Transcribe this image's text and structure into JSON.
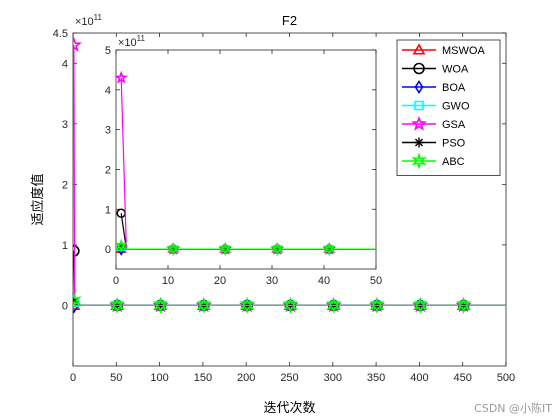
{
  "chart_data": [
    {
      "type": "line",
      "title": "F2",
      "xlabel": "迭代次数",
      "ylabel": "适应度值",
      "y_exponent_label": "×10",
      "y_exponent": "11",
      "xlim": [
        0,
        500
      ],
      "ylim": [
        -1.0,
        4.5
      ],
      "xticks": [
        0,
        50,
        100,
        150,
        200,
        250,
        300,
        350,
        400,
        450,
        500
      ],
      "yticks": [
        0,
        1,
        2,
        3,
        4,
        4.5
      ],
      "marker_x": [
        1,
        51,
        101,
        151,
        201,
        251,
        301,
        351,
        401,
        451
      ],
      "series": [
        {
          "name": "MSWOA",
          "color": "#ff0000",
          "marker": "triangle",
          "start_y": 0
        },
        {
          "name": "WOA",
          "color": "#000000",
          "marker": "circle",
          "start_y": 0.9
        },
        {
          "name": "BOA",
          "color": "#0000ff",
          "marker": "diamond",
          "start_y": -0.02
        },
        {
          "name": "GWO",
          "color": "#00ffff",
          "marker": "square",
          "start_y": 0.05
        },
        {
          "name": "GSA",
          "color": "#ff00ff",
          "marker": "star",
          "start_y": 4.3
        },
        {
          "name": "PSO",
          "color": "#000000",
          "marker": "asterisk",
          "start_y": 0.06
        },
        {
          "name": "ABC",
          "color": "#00ff00",
          "marker": "hexagram",
          "start_y": 0.08
        }
      ],
      "legend_position": "top-right",
      "grid": false
    },
    {
      "type": "line",
      "title": "",
      "y_exponent_label": "×10",
      "y_exponent": "11",
      "xlim": [
        0,
        50
      ],
      "ylim": [
        -0.5,
        5.0
      ],
      "xticks": [
        0,
        10,
        20,
        30,
        40,
        50
      ],
      "yticks": [
        0,
        1,
        2,
        3,
        4,
        5
      ],
      "marker_x": [
        1,
        11,
        21,
        31,
        41
      ],
      "inset": true
    }
  ],
  "watermark": "CSDN @小陈IT"
}
